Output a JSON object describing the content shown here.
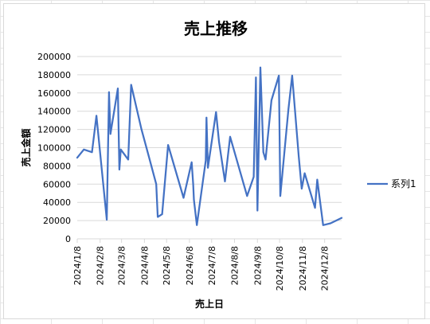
{
  "chart_data": {
    "type": "line",
    "title": "売上推移",
    "xlabel": "売上日",
    "ylabel": "売上金額",
    "ylim": [
      0,
      200000
    ],
    "yticks": [
      0,
      20000,
      40000,
      60000,
      80000,
      100000,
      120000,
      140000,
      160000,
      180000,
      200000
    ],
    "ytick_labels": [
      "0",
      "20000",
      "40000",
      "60000",
      "80000",
      "100000",
      "120000",
      "140000",
      "160000",
      "180000",
      "200000"
    ],
    "xlim": [
      "2024-01-08",
      "2024-12-31"
    ],
    "xticks": [
      "2024-01-08",
      "2024-02-08",
      "2024-03-08",
      "2024-04-08",
      "2024-05-08",
      "2024-06-08",
      "2024-07-08",
      "2024-08-08",
      "2024-09-08",
      "2024-10-08",
      "2024-11-08",
      "2024-12-08"
    ],
    "xtick_labels": [
      "2024/1/8",
      "2024/2/8",
      "2024/3/8",
      "2024/4/8",
      "2024/5/8",
      "2024/6/8",
      "2024/7/8",
      "2024/8/8",
      "2024/9/8",
      "2024/10/8",
      "2024/11/8",
      "2024/12/8"
    ],
    "grid": true,
    "legend_position": "right",
    "color": "#4472C4",
    "series": [
      {
        "name": "系列1",
        "x": [
          "2024-01-08",
          "2024-01-17",
          "2024-01-28",
          "2024-02-03",
          "2024-02-17",
          "2024-02-20",
          "2024-02-22",
          "2024-03-03",
          "2024-03-05",
          "2024-03-07",
          "2024-03-17",
          "2024-03-21",
          "2024-04-04",
          "2024-04-14",
          "2024-04-24",
          "2024-04-26",
          "2024-05-02",
          "2024-05-10",
          "2024-05-31",
          "2024-06-11",
          "2024-06-13",
          "2024-06-14",
          "2024-06-18",
          "2024-06-30",
          "2024-07-01",
          "2024-07-03",
          "2024-07-14",
          "2024-07-18",
          "2024-07-26",
          "2024-08-02",
          "2024-08-25",
          "2024-09-03",
          "2024-09-06",
          "2024-09-08",
          "2024-09-12",
          "2024-09-16",
          "2024-09-19",
          "2024-09-27",
          "2024-10-07",
          "2024-10-09",
          "2024-10-20",
          "2024-10-25",
          "2024-11-03",
          "2024-11-07",
          "2024-11-11",
          "2024-11-25",
          "2024-11-28",
          "2024-12-06",
          "2024-12-16",
          "2024-12-31"
        ],
        "values": [
          89000,
          98000,
          95000,
          135000,
          21000,
          161000,
          115000,
          165000,
          76000,
          98000,
          87000,
          169000,
          120000,
          90000,
          60000,
          24000,
          27000,
          103000,
          45000,
          84000,
          60000,
          43000,
          15000,
          86000,
          133000,
          78000,
          139000,
          106000,
          63000,
          112000,
          47000,
          68000,
          177000,
          31000,
          188000,
          95000,
          87000,
          152000,
          179000,
          47000,
          142000,
          179000,
          90000,
          55000,
          72000,
          34000,
          65000,
          15000,
          17000,
          23000
        ]
      }
    ]
  }
}
